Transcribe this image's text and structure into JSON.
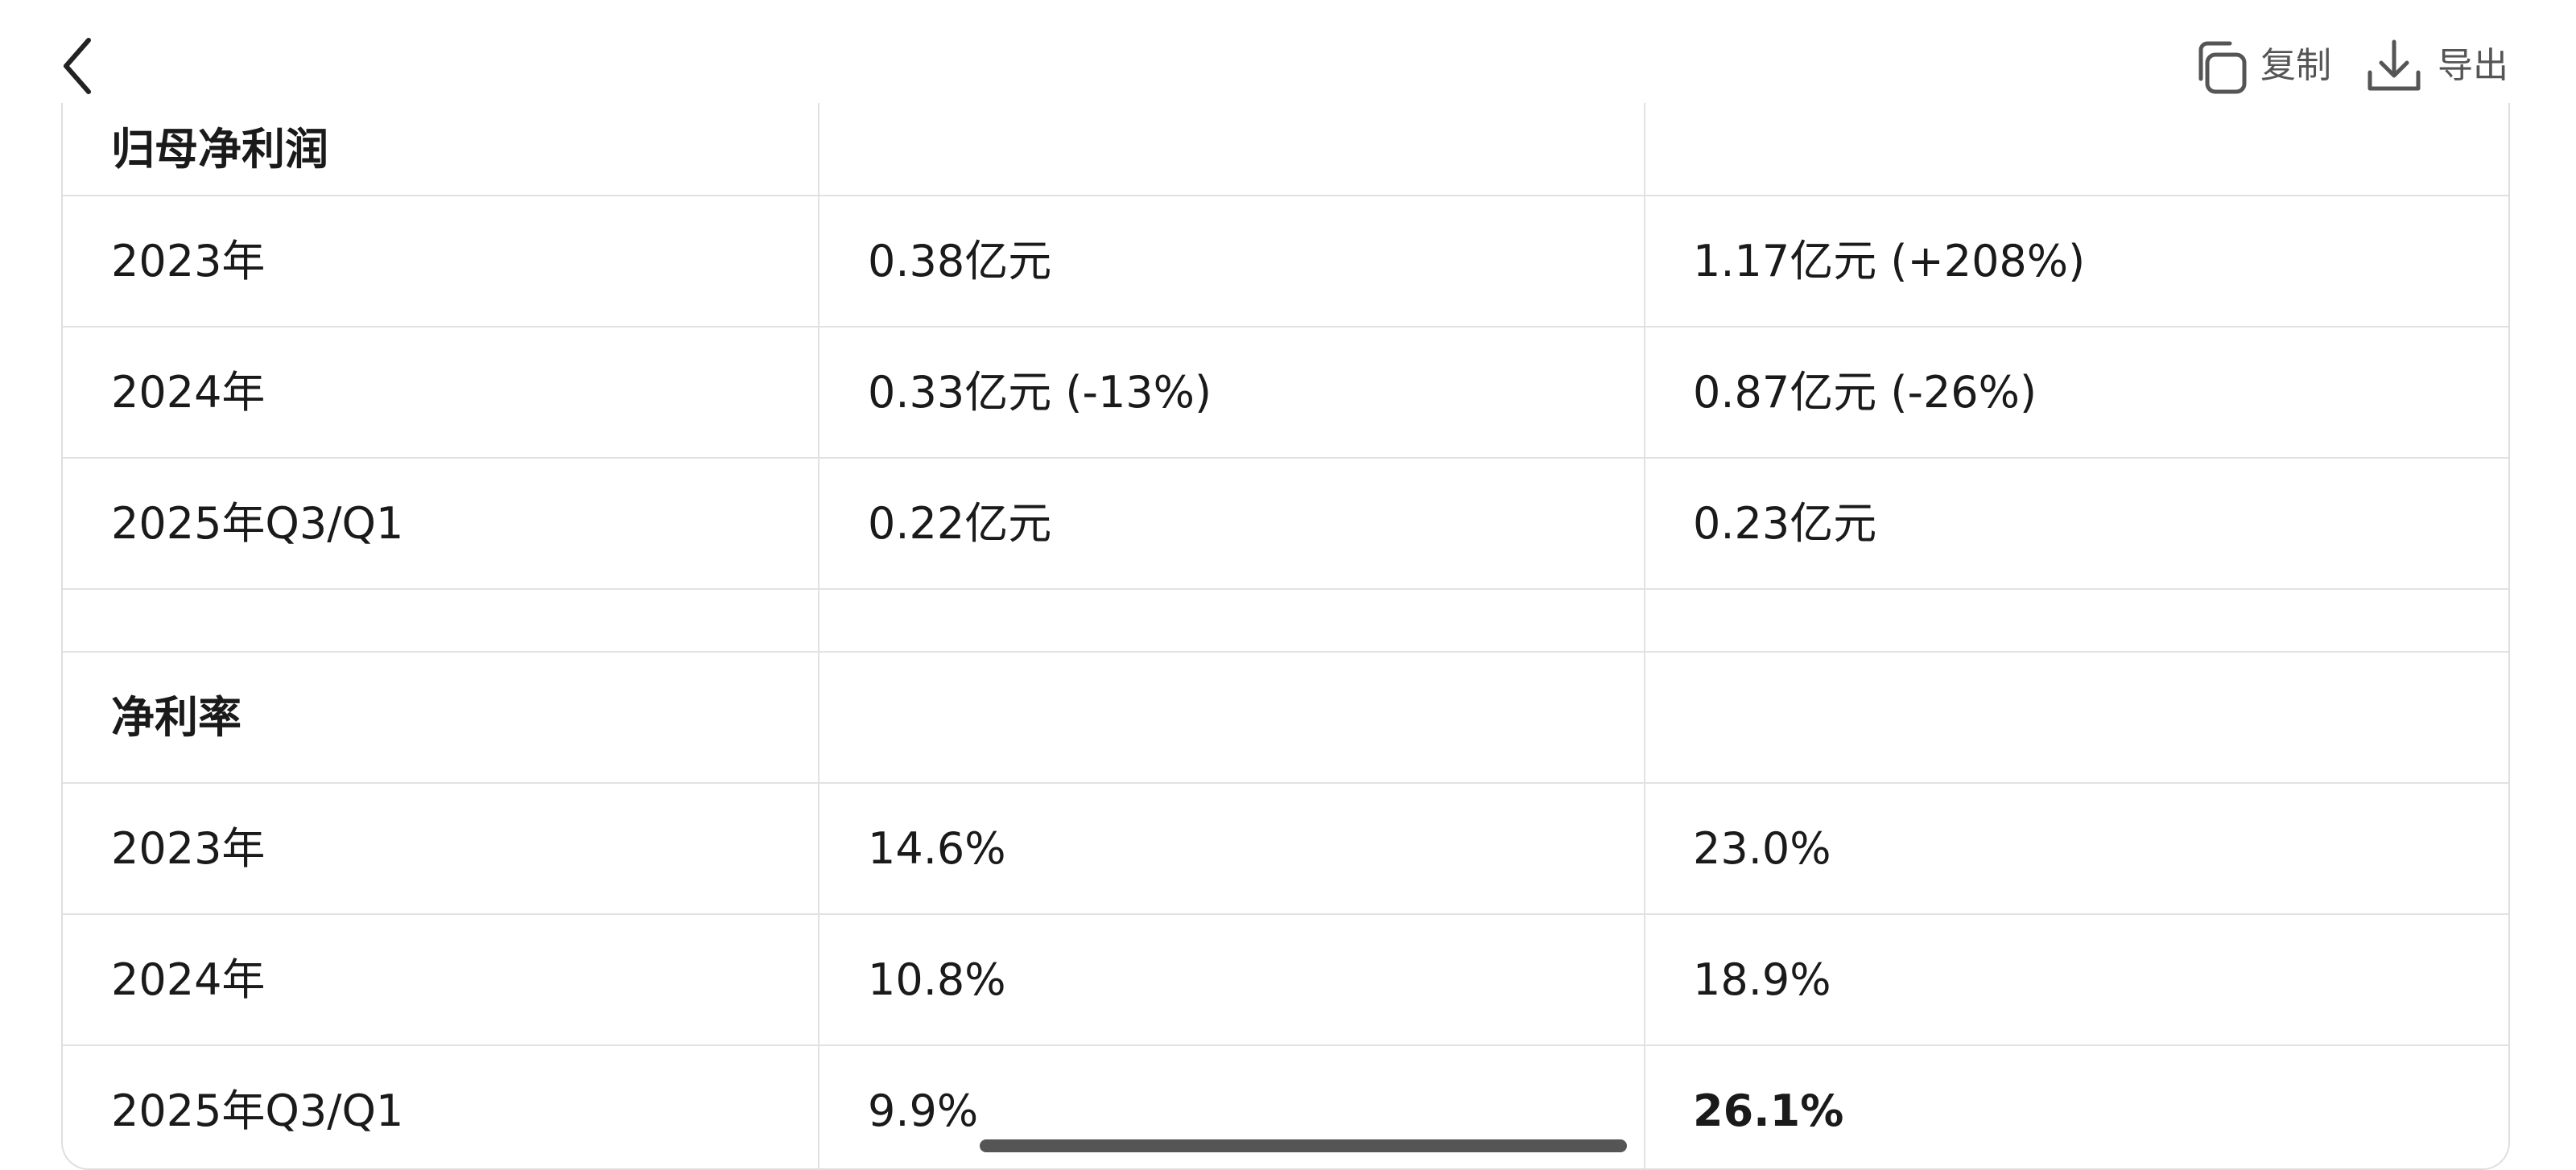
{
  "header": {
    "actions": {
      "copy": "复制",
      "export": "导出"
    }
  },
  "sections": [
    {
      "title": "归母净利润",
      "rows": [
        [
          "2023年",
          "0.38亿元",
          "1.17亿元 (+208%)"
        ],
        [
          "2024年",
          "0.33亿元 (-13%)",
          "0.87亿元 (-26%)"
        ],
        [
          "2025年Q3/Q1",
          "0.22亿元",
          "0.23亿元"
        ]
      ]
    },
    {
      "title": "净利率",
      "rows": [
        [
          "2023年",
          "14.6%",
          "23.0%"
        ],
        [
          "2024年",
          "10.8%",
          "18.9%"
        ],
        [
          "2025年Q3/Q1",
          "9.9%",
          "26.1%"
        ]
      ]
    }
  ]
}
